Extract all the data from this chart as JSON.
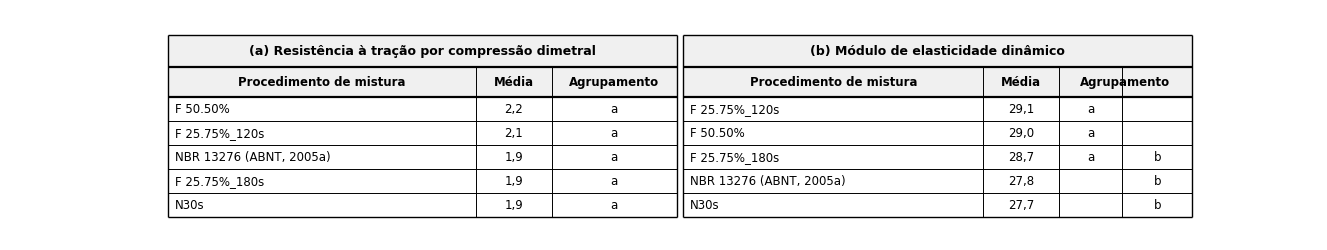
{
  "title_a": "(a) Resistência à tração por compressão dimetral",
  "title_b": "(b) Módulo de elasticidade dinâmico",
  "header_col1": "Procedimento de mistura",
  "header_col2": "Média",
  "header_col3": "Agrupamento",
  "table_a": [
    [
      "F 50.50%",
      "2,2",
      "a"
    ],
    [
      "F 25.75%_120s",
      "2,1",
      "a"
    ],
    [
      "NBR 13276 (ABNT, 2005a)",
      "1,9",
      "a"
    ],
    [
      "F 25.75%_180s",
      "1,9",
      "a"
    ],
    [
      "N30s",
      "1,9",
      "a"
    ]
  ],
  "table_b": [
    [
      "F 25.75%_120s",
      "29,1",
      "a",
      ""
    ],
    [
      "F 50.50%",
      "29,0",
      "a",
      ""
    ],
    [
      "F 25.75%_180s",
      "28,7",
      "a",
      "b"
    ],
    [
      "NBR 13276 (ABNT, 2005a)",
      "27,8",
      "",
      "b"
    ],
    [
      "N30s",
      "27,7",
      "",
      "b"
    ]
  ],
  "bg_color": "#ffffff",
  "title_bg": "#f0f0f0",
  "header_bg": "#f0f0f0",
  "line_color": "#000000",
  "text_color": "#000000",
  "title_fontsize": 9.0,
  "header_fontsize": 8.5,
  "cell_fontsize": 8.5,
  "fig_width": 13.27,
  "fig_height": 2.51,
  "dpi": 100
}
